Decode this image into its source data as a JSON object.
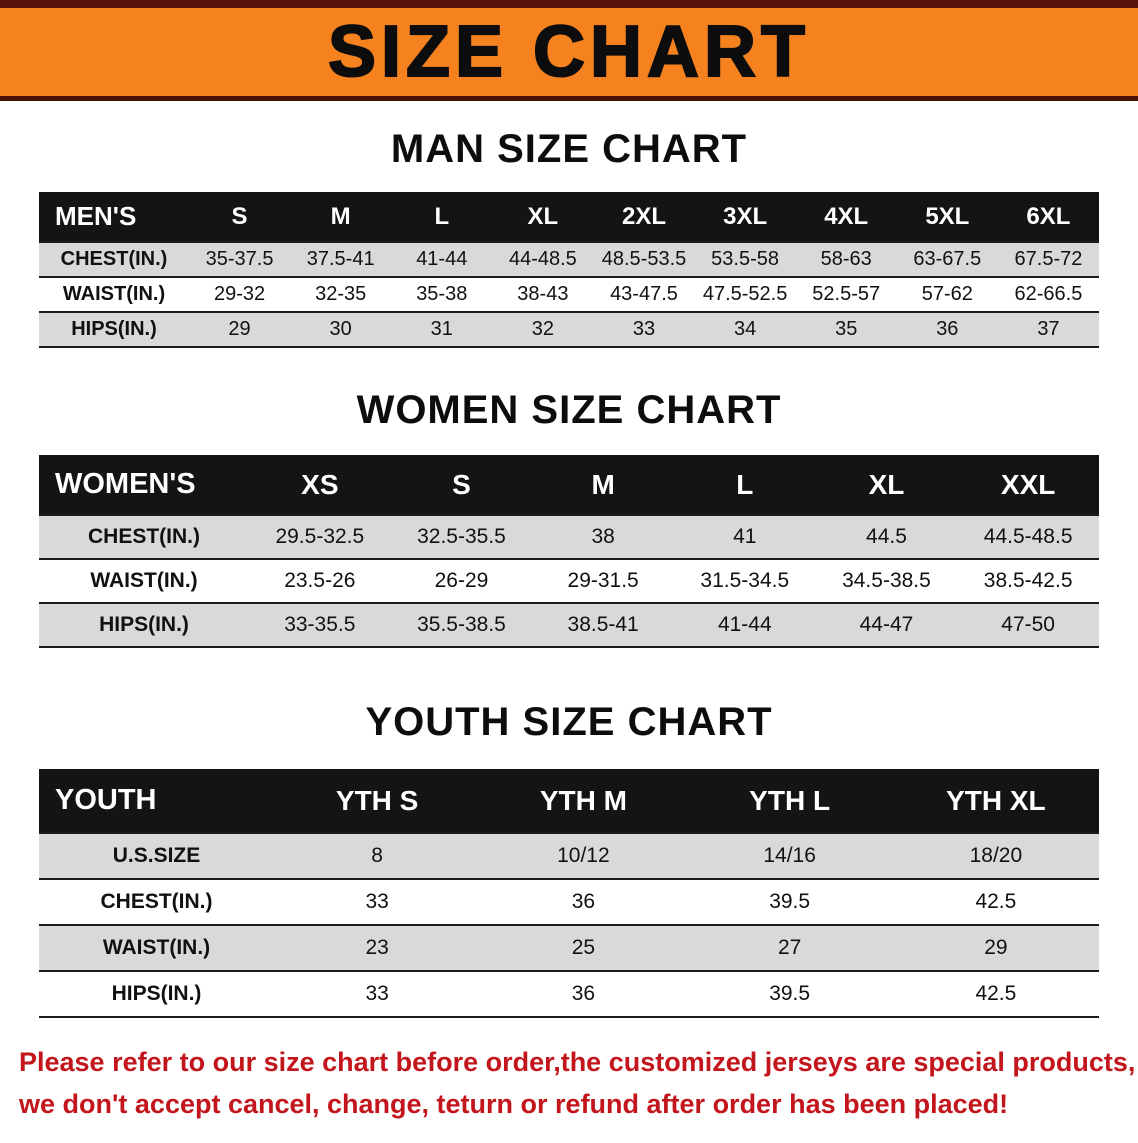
{
  "banner": {
    "title": "SIZE CHART",
    "background_color": "#F6821F",
    "edge_color": "#58140a",
    "text_color": "#0d0d0d"
  },
  "men": {
    "heading": "MAN SIZE CHART",
    "table": {
      "header_label": "MEN'S",
      "columns": [
        "S",
        "M",
        "L",
        "XL",
        "2XL",
        "3XL",
        "4XL",
        "5XL",
        "6XL"
      ],
      "rows": [
        {
          "label": "CHEST(IN.)",
          "values": [
            "35-37.5",
            "37.5-41",
            "41-44",
            "44-48.5",
            "48.5-53.5",
            "53.5-58",
            "58-63",
            "63-67.5",
            "67.5-72"
          ]
        },
        {
          "label": "WAIST(IN.)",
          "values": [
            "29-32",
            "32-35",
            "35-38",
            "38-43",
            "43-47.5",
            "47.5-52.5",
            "52.5-57",
            "57-62",
            "62-66.5"
          ]
        },
        {
          "label": "HIPS(IN.)",
          "values": [
            "29",
            "30",
            "31",
            "32",
            "33",
            "34",
            "35",
            "36",
            "37"
          ]
        }
      ]
    }
  },
  "women": {
    "heading": "WOMEN SIZE CHART",
    "table": {
      "header_label": "WOMEN'S",
      "columns": [
        "XS",
        "S",
        "M",
        "L",
        "XL",
        "XXL"
      ],
      "rows": [
        {
          "label": "CHEST(IN.)",
          "values": [
            "29.5-32.5",
            "32.5-35.5",
            "38",
            "41",
            "44.5",
            "44.5-48.5"
          ]
        },
        {
          "label": "WAIST(IN.)",
          "values": [
            "23.5-26",
            "26-29",
            "29-31.5",
            "31.5-34.5",
            "34.5-38.5",
            "38.5-42.5"
          ]
        },
        {
          "label": "HIPS(IN.)",
          "values": [
            "33-35.5",
            "35.5-38.5",
            "38.5-41",
            "41-44",
            "44-47",
            "47-50"
          ]
        }
      ]
    }
  },
  "youth": {
    "heading": "YOUTH SIZE CHART",
    "table": {
      "header_label": "YOUTH",
      "columns": [
        "YTH S",
        "YTH M",
        "YTH L",
        "YTH XL"
      ],
      "rows": [
        {
          "label": "U.S.SIZE",
          "values": [
            "8",
            "10/12",
            "14/16",
            "18/20"
          ]
        },
        {
          "label": "CHEST(IN.)",
          "values": [
            "33",
            "36",
            "39.5",
            "42.5"
          ]
        },
        {
          "label": "WAIST(IN.)",
          "values": [
            "23",
            "25",
            "27",
            "29"
          ]
        },
        {
          "label": "HIPS(IN.)",
          "values": [
            "33",
            "36",
            "39.5",
            "42.5"
          ]
        }
      ]
    }
  },
  "notice": {
    "line1": "Please refer to our size chart before order,the customized jerseys are special products,",
    "line2": "we don't accept cancel, change, teturn or refund after order has been placed!",
    "text_color": "#c3161c"
  }
}
